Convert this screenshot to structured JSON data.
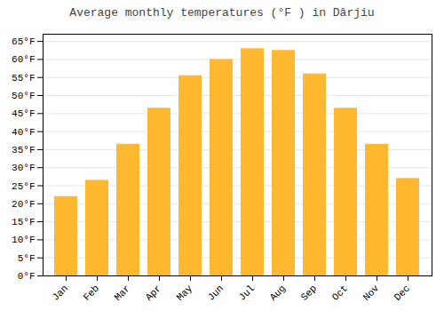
{
  "chart_data": {
    "type": "bar",
    "title": "Average monthly temperatures (°F ) in Dârjiu",
    "categories": [
      "Jan",
      "Feb",
      "Mar",
      "Apr",
      "May",
      "Jun",
      "Jul",
      "Aug",
      "Sep",
      "Oct",
      "Nov",
      "Dec"
    ],
    "values": [
      22,
      26.5,
      36.5,
      46.5,
      55.5,
      60,
      63,
      62.5,
      56,
      46.5,
      36.5,
      27
    ],
    "color": "#FFB830",
    "ylim": [
      0,
      67
    ],
    "yticks": [
      {
        "value": 0,
        "label": "0°F"
      },
      {
        "value": 5,
        "label": "5°F"
      },
      {
        "value": 10,
        "label": "10°F"
      },
      {
        "value": 15,
        "label": "15°F"
      },
      {
        "value": 20,
        "label": "20°F"
      },
      {
        "value": 25,
        "label": "25°F"
      },
      {
        "value": 30,
        "label": "30°F"
      },
      {
        "value": 35,
        "label": "35°F"
      },
      {
        "value": 40,
        "label": "40°F"
      },
      {
        "value": 45,
        "label": "45°F"
      },
      {
        "value": 50,
        "label": "50°F"
      },
      {
        "value": 55,
        "label": "55°F"
      },
      {
        "value": 60,
        "label": "60°F"
      },
      {
        "value": 65,
        "label": "65°F"
      }
    ],
    "grid": true
  }
}
